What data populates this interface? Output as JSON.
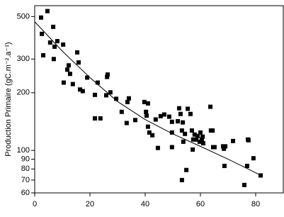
{
  "chart_data": {
    "type": "scatter",
    "y_label": "Production Primaire (gC.m⁻².a⁻¹)",
    "xlim": [
      0,
      90
    ],
    "xticks": [
      0,
      20,
      40,
      60,
      80
    ],
    "ylim": [
      60,
      570
    ],
    "yticks": [
      60,
      70,
      80,
      90,
      100,
      200,
      300,
      500
    ],
    "log_y": true,
    "grid": false,
    "series": [
      {
        "type": "scatter",
        "color": "#000000",
        "x": [
          2.3,
          4.6,
          2.6,
          3.1,
          6.7,
          5.6,
          7.2,
          6.9,
          8.2,
          10.3,
          10.5,
          11.8,
          12.3,
          12.8,
          13.8,
          15.4,
          15.9,
          16.4,
          17.4,
          19,
          21.8,
          21.8,
          22.8,
          23.8,
          26.2,
          26.4,
          25.9,
          27.4,
          29.5,
          31.5,
          33.3,
          33.6,
          34.1,
          36.4,
          39.7,
          41,
          40.3,
          40.5,
          41.5,
          41,
          42.6,
          43.8,
          44.6,
          45.6,
          46.9,
          48.7,
          49.7,
          49.7,
          49.7,
          51.8,
          52.3,
          52.8,
          53.3,
          53.6,
          53.8,
          54.4,
          55.4,
          56.4,
          56.9,
          57.2,
          57.4,
          57.9,
          58.5,
          59,
          59.7,
          60,
          60.5,
          60.8,
          61,
          63.6,
          63.8,
          64.4,
          64.6,
          65.1,
          68.2,
          68.5,
          69,
          54.9,
          53.3,
          71.8,
          75.9,
          76.9,
          77.4,
          77.2,
          79.2,
          81.8,
          68.7
        ],
        "values": [
          494,
          534,
          406,
          314,
          442,
          366,
          348,
          300,
          372,
          357,
          226,
          264,
          278,
          251,
          222,
          325,
          288,
          208,
          204,
          240,
          195,
          147,
          226,
          147,
          242,
          249,
          194,
          201,
          186,
          159,
          139,
          179,
          187,
          144,
          179,
          176,
          159,
          152,
          124,
          133,
          120,
          145,
          103,
          151,
          154,
          150,
          141,
          124,
          104,
          142,
          166,
          155,
          127,
          140,
          111,
          122,
          165,
          155,
          127,
          101,
          114,
          121,
          114,
          119,
          111,
          124,
          114,
          118,
          109,
          169,
          127,
          127,
          104,
          104,
          105,
          102,
          105,
          79,
          70,
          112,
          66,
          83,
          113,
          114,
          91,
          74,
          83
        ]
      },
      {
        "type": "line",
        "color": "#000000",
        "x": [
          0,
          10,
          20,
          30,
          40,
          50,
          60,
          70,
          82
        ],
        "values": [
          470,
          330,
          240,
          180,
          145,
          122,
          105,
          90,
          74
        ]
      }
    ]
  }
}
